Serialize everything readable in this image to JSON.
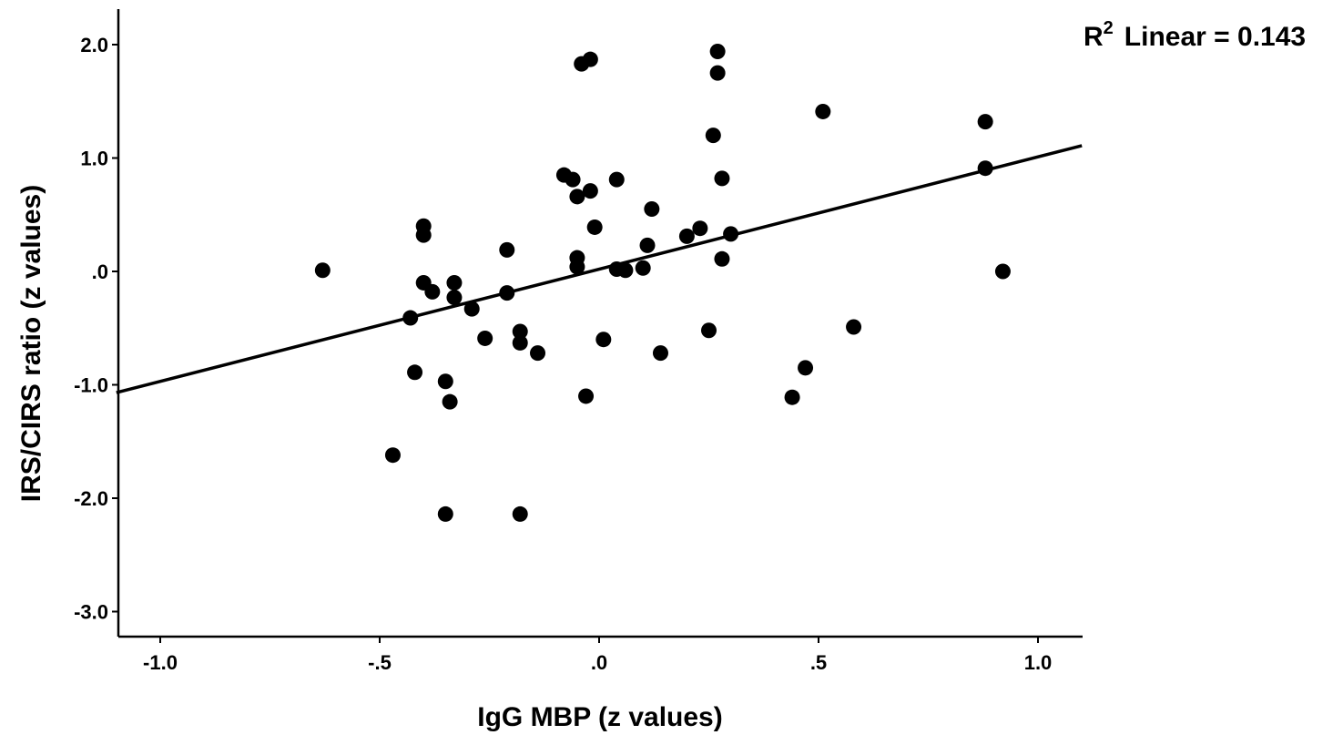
{
  "chart_data": {
    "type": "scatter",
    "xlabel": "IgG MBP (z values)",
    "ylabel": "IRS/CIRS ratio (z values)",
    "xlim": [
      -1.1,
      1.1
    ],
    "ylim": [
      -3.2,
      2.3
    ],
    "x_ticks": [
      -1.0,
      -0.5,
      0.0,
      0.5,
      1.0
    ],
    "x_tick_labels": [
      "-1.0",
      "-.5",
      ".0",
      ".5",
      "1.0"
    ],
    "y_ticks": [
      2.0,
      1.0,
      0.0,
      -1.0,
      -2.0,
      -3.0
    ],
    "y_tick_labels": [
      "2.0",
      "1.0",
      ".0",
      "-1.0",
      "-2.0",
      "-3.0"
    ],
    "fit_line": {
      "type": "linear",
      "intercept": 0.02,
      "slope": 0.99,
      "r2_label": "R",
      "r2_sup": "2",
      "r2_text": "Linear = 0.143"
    },
    "marker_color": "#000000",
    "points": [
      {
        "x": -0.63,
        "y": 0.01
      },
      {
        "x": -0.47,
        "y": -1.62
      },
      {
        "x": -0.43,
        "y": -0.41
      },
      {
        "x": -0.42,
        "y": -0.89
      },
      {
        "x": -0.4,
        "y": 0.4
      },
      {
        "x": -0.4,
        "y": 0.32
      },
      {
        "x": -0.4,
        "y": -0.1
      },
      {
        "x": -0.38,
        "y": -0.18
      },
      {
        "x": -0.35,
        "y": -0.97
      },
      {
        "x": -0.34,
        "y": -1.15
      },
      {
        "x": -0.35,
        "y": -2.14
      },
      {
        "x": -0.33,
        "y": -0.1
      },
      {
        "x": -0.33,
        "y": -0.23
      },
      {
        "x": -0.29,
        "y": -0.33
      },
      {
        "x": -0.26,
        "y": -0.59
      },
      {
        "x": -0.21,
        "y": 0.19
      },
      {
        "x": -0.21,
        "y": -0.19
      },
      {
        "x": -0.18,
        "y": -0.53
      },
      {
        "x": -0.18,
        "y": -0.63
      },
      {
        "x": -0.18,
        "y": -2.14
      },
      {
        "x": -0.14,
        "y": -0.72
      },
      {
        "x": -0.08,
        "y": 0.85
      },
      {
        "x": -0.06,
        "y": 0.81
      },
      {
        "x": -0.05,
        "y": 0.66
      },
      {
        "x": -0.05,
        "y": 0.12
      },
      {
        "x": -0.05,
        "y": 0.04
      },
      {
        "x": -0.04,
        "y": 1.83
      },
      {
        "x": -0.02,
        "y": 1.87
      },
      {
        "x": -0.02,
        "y": 0.71
      },
      {
        "x": -0.01,
        "y": 0.39
      },
      {
        "x": -0.03,
        "y": -1.1
      },
      {
        "x": 0.01,
        "y": -0.6
      },
      {
        "x": 0.04,
        "y": 0.81
      },
      {
        "x": 0.04,
        "y": 0.02
      },
      {
        "x": 0.06,
        "y": 0.01
      },
      {
        "x": 0.1,
        "y": 0.03
      },
      {
        "x": 0.12,
        "y": 0.55
      },
      {
        "x": 0.11,
        "y": 0.23
      },
      {
        "x": 0.14,
        "y": -0.72
      },
      {
        "x": 0.2,
        "y": 0.31
      },
      {
        "x": 0.23,
        "y": 0.38
      },
      {
        "x": 0.25,
        "y": -0.52
      },
      {
        "x": 0.26,
        "y": 1.2
      },
      {
        "x": 0.27,
        "y": 1.75
      },
      {
        "x": 0.27,
        "y": 1.94
      },
      {
        "x": 0.28,
        "y": 0.82
      },
      {
        "x": 0.28,
        "y": 0.11
      },
      {
        "x": 0.3,
        "y": 0.33
      },
      {
        "x": 0.44,
        "y": -1.11
      },
      {
        "x": 0.47,
        "y": -0.85
      },
      {
        "x": 0.51,
        "y": 1.41
      },
      {
        "x": 0.58,
        "y": -0.49
      },
      {
        "x": 0.88,
        "y": 1.32
      },
      {
        "x": 0.88,
        "y": 0.91
      },
      {
        "x": 0.92,
        "y": 0.0
      }
    ]
  }
}
